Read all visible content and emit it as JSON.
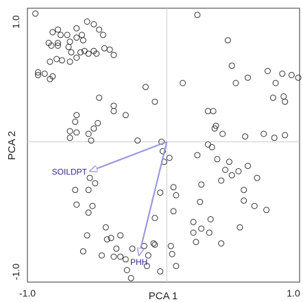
{
  "chart_data": {
    "type": "scatter",
    "xlabel": "PCA 1",
    "ylabel": "PCA 2",
    "xlim": [
      -1.05,
      1.0
    ],
    "ylim": [
      -1.05,
      1.0
    ],
    "x_ticks": [
      "-1.0",
      "1.0"
    ],
    "y_ticks": [
      "1.0",
      "-1.0"
    ],
    "grid": false,
    "reference_lines": "zero-lines",
    "colors": {
      "points": "#333333",
      "zero_lines": "#cccccc",
      "arrows": "#9a99dc",
      "arrow_labels": "#2e2a86"
    },
    "points": [
      {
        "x": 0.23,
        "y": 0.95
      },
      {
        "x": 0.46,
        "y": 0.76
      },
      {
        "x": -0.97,
        "y": 0.52
      },
      {
        "x": -0.88,
        "y": 0.47
      },
      {
        "x": -0.79,
        "y": 0.61
      },
      {
        "x": -0.73,
        "y": 0.6
      },
      {
        "x": -0.83,
        "y": 0.62
      },
      {
        "x": -0.68,
        "y": 0.63
      },
      {
        "x": -0.74,
        "y": 0.71
      },
      {
        "x": -0.59,
        "y": 0.66
      },
      {
        "x": -0.82,
        "y": 0.72
      },
      {
        "x": -0.82,
        "y": 0.74
      },
      {
        "x": -0.8,
        "y": 0.8
      },
      {
        "x": -0.73,
        "y": 0.75
      },
      {
        "x": -0.75,
        "y": 0.8
      },
      {
        "x": -0.63,
        "y": 0.76
      },
      {
        "x": -0.99,
        "y": 0.96
      },
      {
        "x": -0.92,
        "y": 0.51
      },
      {
        "x": -0.87,
        "y": 0.72
      },
      {
        "x": -0.97,
        "y": 0.5
      },
      {
        "x": -0.89,
        "y": 0.74
      },
      {
        "x": -0.86,
        "y": 0.82
      },
      {
        "x": -0.72,
        "y": 0.67
      },
      {
        "x": -0.68,
        "y": 0.78
      },
      {
        "x": -0.65,
        "y": 0.67
      },
      {
        "x": -0.62,
        "y": 0.68
      },
      {
        "x": -0.53,
        "y": 0.66
      },
      {
        "x": -0.55,
        "y": 0.68
      },
      {
        "x": -0.47,
        "y": 0.7
      },
      {
        "x": -0.43,
        "y": 0.69
      },
      {
        "x": -0.4,
        "y": 0.65
      },
      {
        "x": -0.82,
        "y": 0.84
      },
      {
        "x": -0.68,
        "y": 0.85
      },
      {
        "x": -0.64,
        "y": 0.8
      },
      {
        "x": -0.6,
        "y": 0.9
      },
      {
        "x": -0.55,
        "y": 0.88
      },
      {
        "x": -0.51,
        "y": 0.84
      },
      {
        "x": -0.48,
        "y": 0.8
      },
      {
        "x": -0.88,
        "y": 0.6
      },
      {
        "x": -0.86,
        "y": 0.49
      },
      {
        "x": -0.51,
        "y": 0.33
      },
      {
        "x": -0.52,
        "y": 0.14
      },
      {
        "x": -0.55,
        "y": 0.1
      },
      {
        "x": -0.16,
        "y": 0.41
      },
      {
        "x": -0.09,
        "y": 0.3
      },
      {
        "x": 0.12,
        "y": 0.44
      },
      {
        "x": 0.31,
        "y": 0.23
      },
      {
        "x": 0.35,
        "y": 0.23
      },
      {
        "x": 0.52,
        "y": 0.44
      },
      {
        "x": 0.49,
        "y": 0.57
      },
      {
        "x": 0.61,
        "y": 0.48
      },
      {
        "x": 0.82,
        "y": 0.44
      },
      {
        "x": 0.76,
        "y": 0.53
      },
      {
        "x": 0.87,
        "y": 0.51
      },
      {
        "x": 0.94,
        "y": 0.5
      },
      {
        "x": 0.99,
        "y": 0.48
      },
      {
        "x": 0.8,
        "y": 0.33
      },
      {
        "x": 0.89,
        "y": 0.3
      },
      {
        "x": 0.88,
        "y": 0.34
      },
      {
        "x": -0.68,
        "y": 0.2
      },
      {
        "x": -0.69,
        "y": 0.15
      },
      {
        "x": -0.73,
        "y": 0.08
      },
      {
        "x": -0.68,
        "y": 0.07
      },
      {
        "x": -0.73,
        "y": 0.03
      },
      {
        "x": -0.59,
        "y": 0.06
      },
      {
        "x": -0.57,
        "y": 0.01
      },
      {
        "x": -0.4,
        "y": 0.27
      },
      {
        "x": -0.4,
        "y": 0.23
      },
      {
        "x": -0.31,
        "y": 0.2
      },
      {
        "x": -0.22,
        "y": 0.01
      },
      {
        "x": -0.04,
        "y": 0.0
      },
      {
        "x": 0.36,
        "y": 0.1
      },
      {
        "x": 0.37,
        "y": 0.12
      },
      {
        "x": 0.31,
        "y": -0.02
      },
      {
        "x": 0.34,
        "y": -0.04
      },
      {
        "x": 0.42,
        "y": 0.06
      },
      {
        "x": 0.59,
        "y": 0.04
      },
      {
        "x": 0.73,
        "y": 0.06
      },
      {
        "x": 0.81,
        "y": 0.03
      },
      {
        "x": 0.89,
        "y": 0.05
      },
      {
        "x": 0.23,
        "y": -0.1
      },
      {
        "x": 0.38,
        "y": -0.13
      },
      {
        "x": 0.44,
        "y": -0.21
      },
      {
        "x": 0.54,
        "y": -0.22
      },
      {
        "x": 0.49,
        "y": -0.25
      },
      {
        "x": 0.41,
        "y": -0.29
      },
      {
        "x": 0.26,
        "y": -0.32
      },
      {
        "x": 0.58,
        "y": -0.36
      },
      {
        "x": 0.58,
        "y": -0.44
      },
      {
        "x": 0.66,
        "y": -0.48
      },
      {
        "x": 0.75,
        "y": -0.51
      },
      {
        "x": 0.55,
        "y": -0.64
      },
      {
        "x": 0.33,
        "y": -0.58
      },
      {
        "x": 0.26,
        "y": -0.65
      },
      {
        "x": 0.2,
        "y": -0.68
      },
      {
        "x": 0.22,
        "y": -0.75
      },
      {
        "x": 0.32,
        "y": -0.68
      },
      {
        "x": 0.41,
        "y": -0.76
      },
      {
        "x": -0.58,
        "y": -0.27
      },
      {
        "x": -0.54,
        "y": -0.31
      },
      {
        "x": -0.68,
        "y": -0.47
      },
      {
        "x": -0.59,
        "y": -0.53
      },
      {
        "x": -0.46,
        "y": -0.64
      },
      {
        "x": -0.35,
        "y": -0.7
      },
      {
        "x": -0.45,
        "y": -0.73
      },
      {
        "x": -0.6,
        "y": -0.7
      },
      {
        "x": -0.63,
        "y": -0.82
      },
      {
        "x": -0.49,
        "y": -0.85
      },
      {
        "x": -0.4,
        "y": -0.86
      },
      {
        "x": -0.31,
        "y": -0.88
      },
      {
        "x": -0.3,
        "y": -0.96
      },
      {
        "x": -0.27,
        "y": -1.02
      },
      {
        "x": -0.14,
        "y": -0.85
      },
      {
        "x": -0.15,
        "y": -0.93
      },
      {
        "x": -0.1,
        "y": -0.76
      },
      {
        "x": 0.03,
        "y": -0.78
      },
      {
        "x": 0.07,
        "y": -0.93
      },
      {
        "x": 0.04,
        "y": -0.84
      },
      {
        "x": -0.05,
        "y": -0.38
      },
      {
        "x": 0.07,
        "y": -0.4
      },
      {
        "x": 0.05,
        "y": -0.52
      },
      {
        "x": -0.09,
        "y": -0.57
      },
      {
        "x": -0.09,
        "y": -0.77
      },
      {
        "x": -0.05,
        "y": -0.97
      },
      {
        "x": -0.17,
        "y": -0.78
      },
      {
        "x": -0.26,
        "y": -0.8
      },
      {
        "x": -0.35,
        "y": -0.86
      },
      {
        "x": -0.38,
        "y": -0.8
      },
      {
        "x": -0.42,
        "y": -0.72
      },
      {
        "x": -0.59,
        "y": -0.36
      },
      {
        "x": -0.56,
        "y": -0.48
      },
      {
        "x": -0.69,
        "y": -0.36
      },
      {
        "x": 0.2,
        "y": -0.6
      },
      {
        "x": 0.25,
        "y": -0.45
      },
      {
        "x": 0.05,
        "y": -0.34
      },
      {
        "x": 0.02,
        "y": -0.12
      },
      {
        "x": -0.02,
        "y": -0.15
      },
      {
        "x": -0.03,
        "y": -0.07
      },
      {
        "x": 0.47,
        "y": -0.15
      },
      {
        "x": 0.61,
        "y": -0.18
      },
      {
        "x": 0.68,
        "y": -0.27
      }
    ],
    "arrows": [
      {
        "label": "SOILDPT",
        "from": [
          0,
          0
        ],
        "to": [
          -0.58,
          -0.22
        ]
      },
      {
        "label": "PHH",
        "from": [
          0,
          0
        ],
        "to": [
          -0.21,
          -0.85
        ]
      }
    ]
  }
}
